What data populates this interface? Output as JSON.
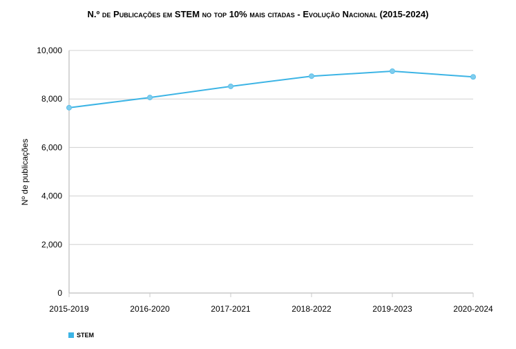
{
  "chart_data": {
    "type": "line",
    "title": "N.º de Publicações em STEM no top 10% mais citadas - Evolução Nacional (2015-2024)",
    "xlabel": "",
    "ylabel": "Nº de publicações",
    "categories": [
      "2015-2019",
      "2016-2020",
      "2017-2021",
      "2018-2022",
      "2019-2023",
      "2020-2024"
    ],
    "series": [
      {
        "name": "STEM",
        "values": [
          7640,
          8060,
          8520,
          8940,
          9145,
          8910
        ],
        "color": "#3cb4e5"
      }
    ],
    "ylim": [
      0,
      10000
    ],
    "yticks": [
      0,
      2000,
      4000,
      6000,
      8000,
      10000
    ],
    "ytick_labels": [
      "0",
      "2,000",
      "4,000",
      "6,000",
      "8,000",
      "10,000"
    ],
    "grid": true,
    "legend": "bottom-left"
  }
}
